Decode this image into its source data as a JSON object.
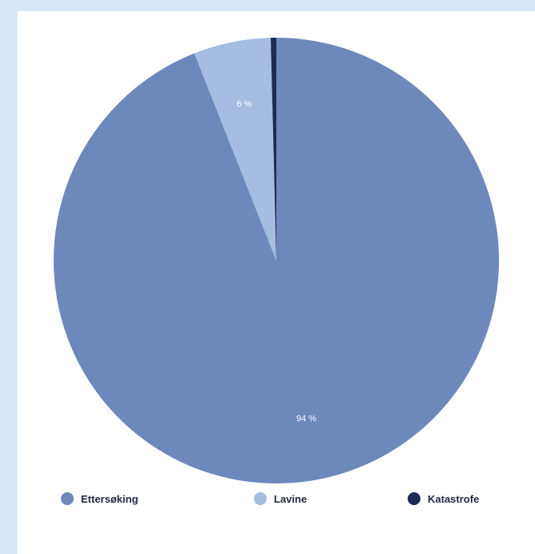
{
  "chart_data": {
    "type": "pie",
    "slices": [
      {
        "label": "Ettersøking",
        "value": 94,
        "display": "94 %",
        "color": "#6d88bb"
      },
      {
        "label": "Lavine",
        "value": 5.6,
        "display": "6 %",
        "color": "#a4bde0"
      },
      {
        "label": "Katastrofe",
        "value": 0.4,
        "display": "",
        "color": "#1c2a55"
      }
    ],
    "legend_position": "bottom"
  }
}
